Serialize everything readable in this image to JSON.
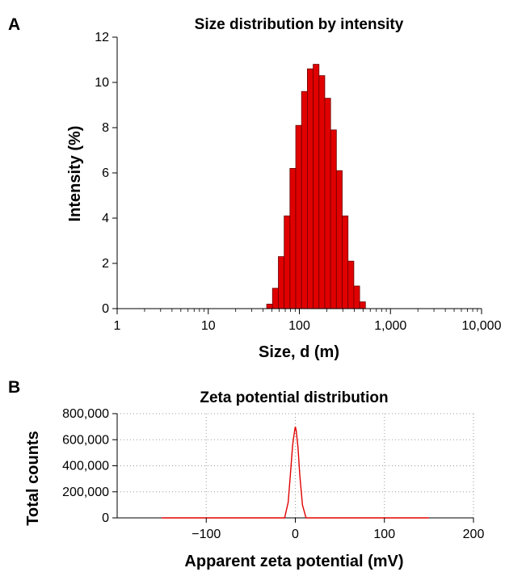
{
  "panels": {
    "a_label": "A",
    "b_label": "B"
  },
  "chart_data": [
    {
      "type": "bar",
      "title": "Size distribution by intensity",
      "xlabel": "Size, d (m)",
      "ylabel": "Intensity (%)",
      "x_scale": "log",
      "xlim": [
        1,
        10000
      ],
      "ylim": [
        0,
        12
      ],
      "x_ticks": [
        1,
        10,
        100,
        1000,
        10000
      ],
      "x_tick_labels": [
        "1",
        "10",
        "100",
        "1,000",
        "10,000"
      ],
      "y_ticks": [
        0,
        2,
        4,
        6,
        8,
        10,
        12
      ],
      "y_tick_labels": [
        "0",
        "2",
        "4",
        "6",
        "8",
        "10",
        "12"
      ],
      "bar_color": "#e00000",
      "bar_edge_color": "#6b0000",
      "grid": false,
      "bins": [
        {
          "x_low": 43.8,
          "x_high": 50.7,
          "value": 0.2
        },
        {
          "x_low": 50.7,
          "x_high": 58.8,
          "value": 0.9
        },
        {
          "x_low": 58.8,
          "x_high": 68.1,
          "value": 2.3
        },
        {
          "x_low": 68.1,
          "x_high": 78.8,
          "value": 4.1
        },
        {
          "x_low": 78.8,
          "x_high": 91.3,
          "value": 6.2
        },
        {
          "x_low": 91.3,
          "x_high": 105.7,
          "value": 8.1
        },
        {
          "x_low": 105.7,
          "x_high": 122.4,
          "value": 9.6
        },
        {
          "x_low": 122.4,
          "x_high": 141.8,
          "value": 10.6
        },
        {
          "x_low": 141.8,
          "x_high": 164.2,
          "value": 10.8
        },
        {
          "x_low": 164.2,
          "x_high": 190.1,
          "value": 10.3
        },
        {
          "x_low": 190.1,
          "x_high": 220.2,
          "value": 9.3
        },
        {
          "x_low": 220.2,
          "x_high": 255.0,
          "value": 7.9
        },
        {
          "x_low": 255.0,
          "x_high": 295.3,
          "value": 6.1
        },
        {
          "x_low": 295.3,
          "x_high": 342.0,
          "value": 4.1
        },
        {
          "x_low": 342.0,
          "x_high": 396.1,
          "value": 2.1
        },
        {
          "x_low": 396.1,
          "x_high": 458.7,
          "value": 1.0
        },
        {
          "x_low": 458.7,
          "x_high": 531.2,
          "value": 0.3
        }
      ]
    },
    {
      "type": "line",
      "title": "Zeta potential distribution",
      "xlabel": "Apparent zeta potential (mV)",
      "ylabel": "Total counts",
      "xlim": [
        -200,
        200
      ],
      "ylim": [
        0,
        800000
      ],
      "x_ticks": [
        -100,
        0,
        100,
        200
      ],
      "x_tick_labels": [
        "−100",
        "0",
        "100",
        "200"
      ],
      "y_ticks": [
        0,
        200000,
        400000,
        600000,
        800000
      ],
      "y_tick_labels": [
        "0",
        "200,000",
        "400,000",
        "600,000",
        "800,000"
      ],
      "grid": true,
      "line_color": "#e00000",
      "series": [
        {
          "x": [
            -150,
            -12,
            -8,
            -5,
            -3,
            -1,
            0,
            1,
            3,
            5,
            8,
            12,
            150
          ],
          "y": [
            0,
            0,
            120000,
            380000,
            560000,
            660000,
            700000,
            670000,
            540000,
            330000,
            100000,
            0,
            0
          ]
        }
      ]
    }
  ]
}
